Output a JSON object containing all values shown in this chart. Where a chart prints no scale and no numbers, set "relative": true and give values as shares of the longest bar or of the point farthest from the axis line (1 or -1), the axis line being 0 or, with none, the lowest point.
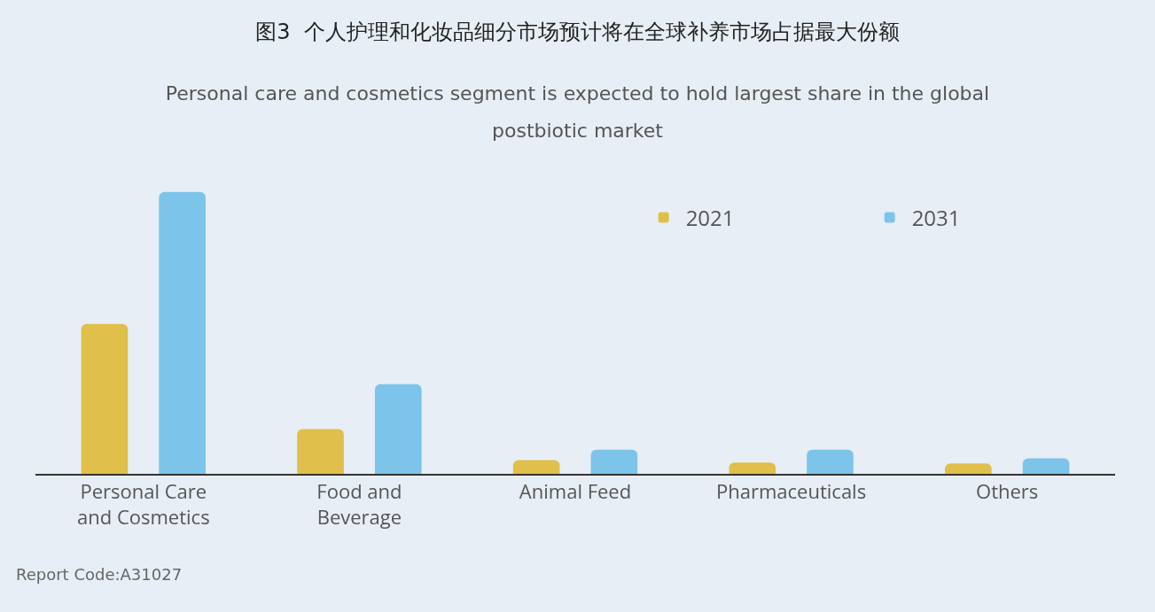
{
  "chart_data": {
    "type": "bar",
    "title": "图3  个人护理和化妆品细分市场预计将在全球补养市场占据最大份额",
    "subtitle": "Personal care and cosmetics segment is expected to hold largest share in the global postbiotic market",
    "categories": [
      "Personal Care and Cosmetics",
      "Food and Beverage",
      "Animal Feed",
      "Pharmaceuticals",
      "Others"
    ],
    "relative": true,
    "series": [
      {
        "name": "2021",
        "color": "#e0bf4a",
        "values": [
          0.532,
          0.159,
          0.049,
          0.04,
          0.037
        ]
      },
      {
        "name": "2031",
        "color": "#7cc4ea",
        "values": [
          1,
          0.318,
          0.086,
          0.086,
          0.055
        ]
      }
    ],
    "legend": "top right",
    "grid": false,
    "annotations": [
      "Report Code:A31027"
    ]
  }
}
